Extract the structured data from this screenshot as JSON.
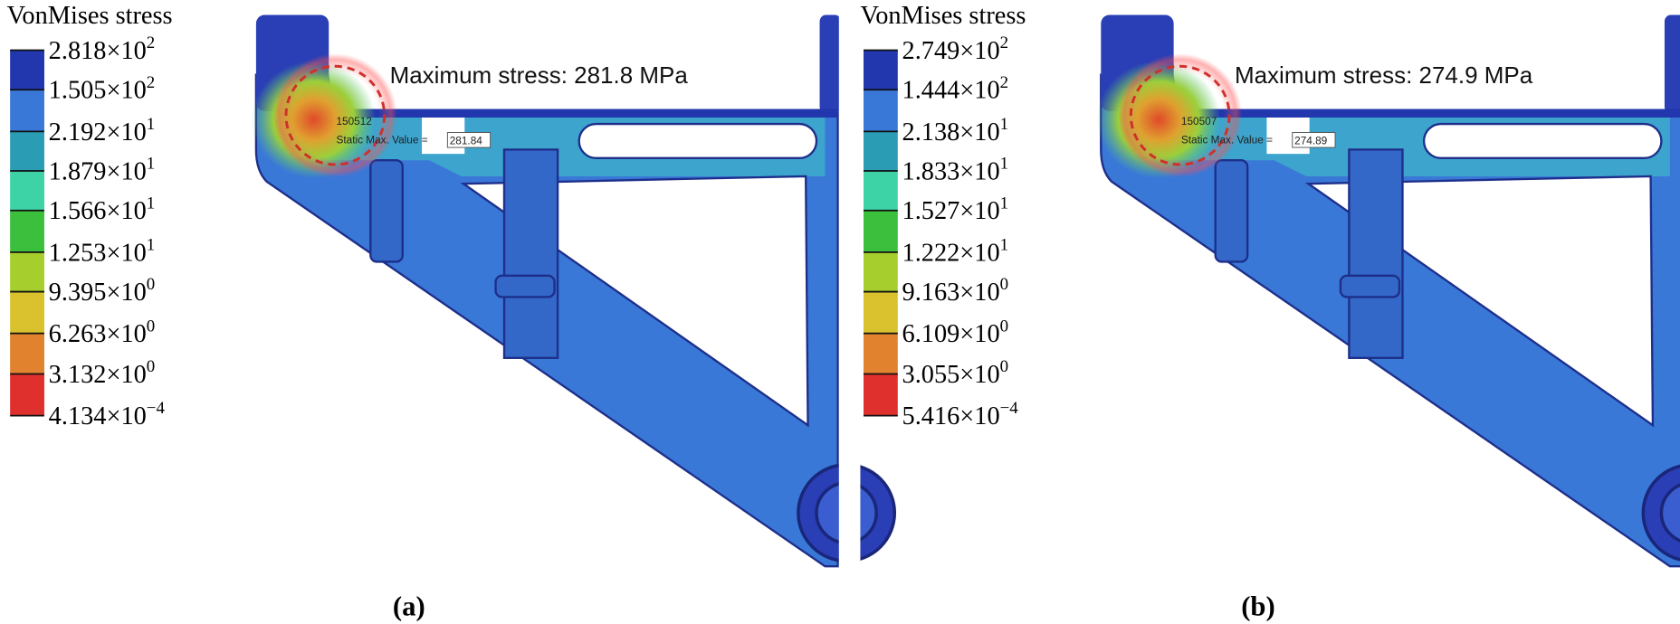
{
  "panels": [
    {
      "caption": "(a)",
      "legend": {
        "title": "VonMises stress",
        "labels": [
          {
            "mantissa": "2.818×10",
            "exponent": "2"
          },
          {
            "mantissa": "1.505×10",
            "exponent": "2"
          },
          {
            "mantissa": "2.192×10",
            "exponent": "1"
          },
          {
            "mantissa": "1.879×10",
            "exponent": "1"
          },
          {
            "mantissa": "1.566×10",
            "exponent": "1"
          },
          {
            "mantissa": "1.253×10",
            "exponent": "1"
          },
          {
            "mantissa": "9.395×10",
            "exponent": "0"
          },
          {
            "mantissa": "6.263×10",
            "exponent": "0"
          },
          {
            "mantissa": "3.132×10",
            "exponent": "0"
          },
          {
            "mantissa": "4.134×10",
            "exponent": "−4"
          }
        ]
      },
      "annotation": "Maximum stress: 281.8 MPa",
      "node_id": "150512",
      "probe_label": "Static Max. Value =",
      "probe_value": "281.84"
    },
    {
      "caption": "(b)",
      "legend": {
        "title": "VonMises stress",
        "labels": [
          {
            "mantissa": "2.749×10",
            "exponent": "2"
          },
          {
            "mantissa": "1.444×10",
            "exponent": "2"
          },
          {
            "mantissa": "2.138×10",
            "exponent": "1"
          },
          {
            "mantissa": "1.833×10",
            "exponent": "1"
          },
          {
            "mantissa": "1.527×10",
            "exponent": "1"
          },
          {
            "mantissa": "1.222×10",
            "exponent": "1"
          },
          {
            "mantissa": "9.163×10",
            "exponent": "0"
          },
          {
            "mantissa": "6.109×10",
            "exponent": "0"
          },
          {
            "mantissa": "3.055×10",
            "exponent": "0"
          },
          {
            "mantissa": "5.416×10",
            "exponent": "−4"
          }
        ]
      },
      "annotation": "Maximum stress: 274.9 MPa",
      "node_id": "150507",
      "probe_label": "Static Max. Value =",
      "probe_value": "274.89"
    }
  ]
}
